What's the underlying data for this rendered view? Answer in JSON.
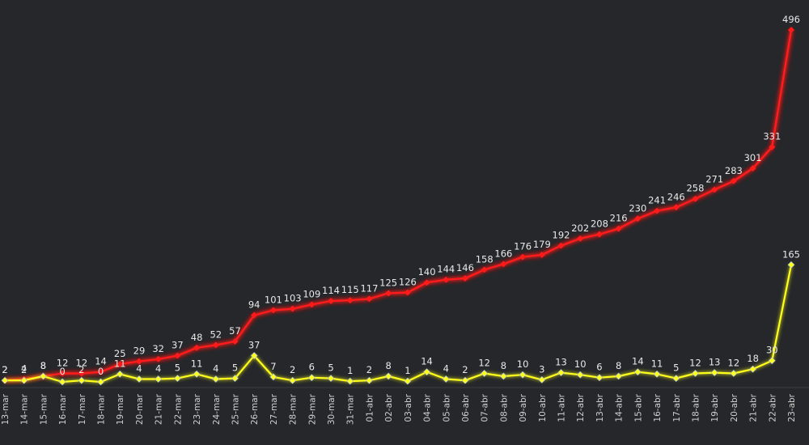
{
  "chart_data": {
    "type": "line",
    "title": "",
    "xlabel": "",
    "ylabel": "",
    "ylim": [
      0,
      500
    ],
    "grid": false,
    "categories": [
      "13-mar",
      "14-mar",
      "15-mar",
      "16-mar",
      "17-mar",
      "18-mar",
      "19-mar",
      "20-mar",
      "21-mar",
      "22-mar",
      "23-mar",
      "24-mar",
      "25-mar",
      "26-mar",
      "27-mar",
      "28-mar",
      "29-mar",
      "30-mar",
      "31-mar",
      "01-abr",
      "02-abr",
      "03-abr",
      "04-abr",
      "05-abr",
      "06-abr",
      "07-abr",
      "08-abr",
      "09-abr",
      "10-abr",
      "11-abr",
      "12-abr",
      "13-abr",
      "14-abr",
      "15-abr",
      "16-abr",
      "17-abr",
      "18-abr",
      "19-abr",
      "20-abr",
      "21-abr",
      "22-abr",
      "23-abr"
    ],
    "series": [
      {
        "color": "#ff1a1a",
        "values": [
          2,
          4,
          8,
          12,
          12,
          14,
          25,
          29,
          32,
          37,
          48,
          52,
          57,
          94,
          101,
          103,
          109,
          114,
          115,
          117,
          125,
          126,
          140,
          144,
          146,
          158,
          166,
          176,
          179,
          192,
          202,
          208,
          216,
          230,
          241,
          246,
          258,
          271,
          283,
          301,
          331,
          496
        ]
      },
      {
        "color": "#ffff1a",
        "values": [
          2,
          2,
          8,
          0,
          2,
          0,
          11,
          4,
          4,
          5,
          11,
          4,
          5,
          37,
          7,
          2,
          6,
          5,
          1,
          2,
          8,
          1,
          14,
          4,
          2,
          12,
          8,
          10,
          3,
          13,
          10,
          6,
          8,
          14,
          11,
          5,
          12,
          13,
          12,
          18,
          30,
          165
        ]
      }
    ]
  }
}
